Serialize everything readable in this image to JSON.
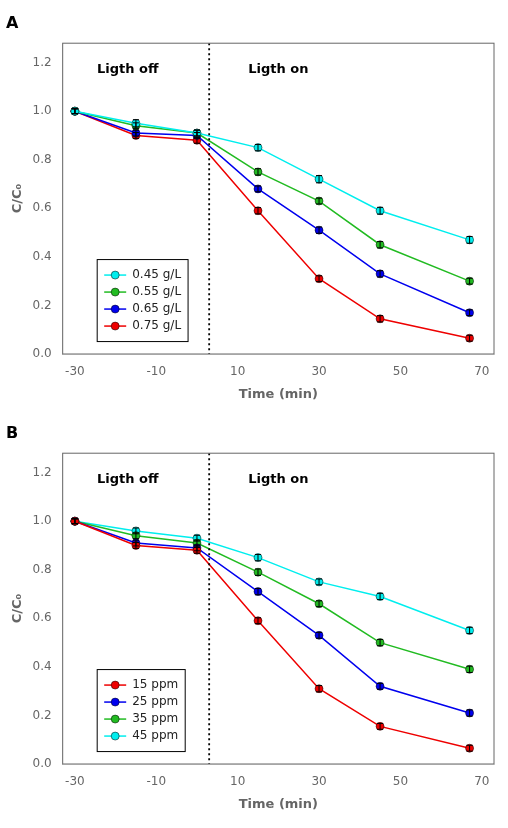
{
  "chart_data": [
    {
      "type": "line",
      "title": "A",
      "xlabel": "Time (min)",
      "ylabel": "C/C₀",
      "x": [
        -30,
        -15,
        0,
        15,
        30,
        45,
        67
      ],
      "series": [
        {
          "name": "0.45 g/L",
          "color": "#00EEEE",
          "values": [
            1.0,
            0.95,
            0.91,
            0.85,
            0.72,
            0.59,
            0.47
          ],
          "err": [
            0.01,
            0.015,
            0.012,
            0.013,
            0.015,
            0.014,
            0.014
          ]
        },
        {
          "name": "0.55 g/L",
          "color": "#22BB22",
          "values": [
            1.0,
            0.94,
            0.91,
            0.75,
            0.63,
            0.45,
            0.3
          ],
          "err": [
            0.01,
            0.012,
            0.012,
            0.013,
            0.012,
            0.013,
            0.012
          ]
        },
        {
          "name": "0.65 g/L",
          "color": "#0000EE",
          "values": [
            1.0,
            0.91,
            0.9,
            0.68,
            0.51,
            0.33,
            0.17
          ],
          "err": [
            0.01,
            0.012,
            0.012,
            0.012,
            0.013,
            0.013,
            0.012
          ]
        },
        {
          "name": "0.75 g/L",
          "color": "#EE0000",
          "values": [
            1.0,
            0.9,
            0.88,
            0.59,
            0.31,
            0.145,
            0.065
          ],
          "err": [
            0.01,
            0.012,
            0.012,
            0.013,
            0.012,
            0.013,
            0.012
          ]
        }
      ],
      "xlim": [
        -33,
        73
      ],
      "xticks": [
        -30,
        -10,
        10,
        30,
        50,
        70
      ],
      "ylim": [
        0,
        1.28
      ],
      "yticks": [
        {
          "value": 0,
          "label": "0.0"
        },
        0.2,
        0.4,
        0.6,
        0.8,
        {
          "value": 1.0,
          "label": "1.0"
        },
        1.2
      ],
      "vlines": [
        {
          "x": 3,
          "line_style": "dotted"
        }
      ],
      "annotations": [
        {
          "x": -17,
          "y": 1.17,
          "text": "Ligth off"
        },
        {
          "x": 20,
          "y": 1.17,
          "text": "Ligth on"
        }
      ],
      "marker": "circle",
      "legend": "lower left",
      "grid": false
    },
    {
      "type": "line",
      "title": "B",
      "xlabel": "Time (min)",
      "ylabel": "C/C₀",
      "x": [
        -30,
        -15,
        0,
        15,
        30,
        45,
        67
      ],
      "series": [
        {
          "name": "15 ppm",
          "color": "#EE0000",
          "values": [
            1.0,
            0.9,
            0.88,
            0.59,
            0.31,
            0.155,
            0.065
          ],
          "err": [
            0.01,
            0.012,
            0.012,
            0.012,
            0.013,
            0.012,
            0.012
          ]
        },
        {
          "name": "25 ppm",
          "color": "#0000EE",
          "values": [
            1.0,
            0.91,
            0.89,
            0.71,
            0.53,
            0.32,
            0.21
          ],
          "err": [
            0.01,
            0.012,
            0.012,
            0.013,
            0.012,
            0.012,
            0.013
          ]
        },
        {
          "name": "35 ppm",
          "color": "#22BB22",
          "values": [
            1.0,
            0.94,
            0.91,
            0.79,
            0.66,
            0.5,
            0.39
          ],
          "err": [
            0.01,
            0.012,
            0.012,
            0.013,
            0.012,
            0.013,
            0.013
          ]
        },
        {
          "name": "45 ppm",
          "color": "#00EEEE",
          "values": [
            1.0,
            0.96,
            0.93,
            0.85,
            0.75,
            0.69,
            0.55
          ],
          "err": [
            0.01,
            0.012,
            0.012,
            0.013,
            0.012,
            0.013,
            0.013
          ]
        }
      ],
      "xlim": [
        -33,
        73
      ],
      "xticks": [
        -30,
        -10,
        10,
        30,
        50,
        70
      ],
      "ylim": [
        0,
        1.28
      ],
      "yticks": [
        {
          "value": 0,
          "label": "0.0"
        },
        0.2,
        0.4,
        0.6,
        0.8,
        {
          "value": 1.0,
          "label": "1.0"
        },
        1.2
      ],
      "vlines": [
        {
          "x": 3,
          "line_style": "dotted"
        }
      ],
      "annotations": [
        {
          "x": -17,
          "y": 1.17,
          "text": "Ligth off"
        },
        {
          "x": 20,
          "y": 1.17,
          "text": "Ligth on"
        }
      ],
      "marker": "circle",
      "legend": "lower left",
      "grid": false
    }
  ]
}
